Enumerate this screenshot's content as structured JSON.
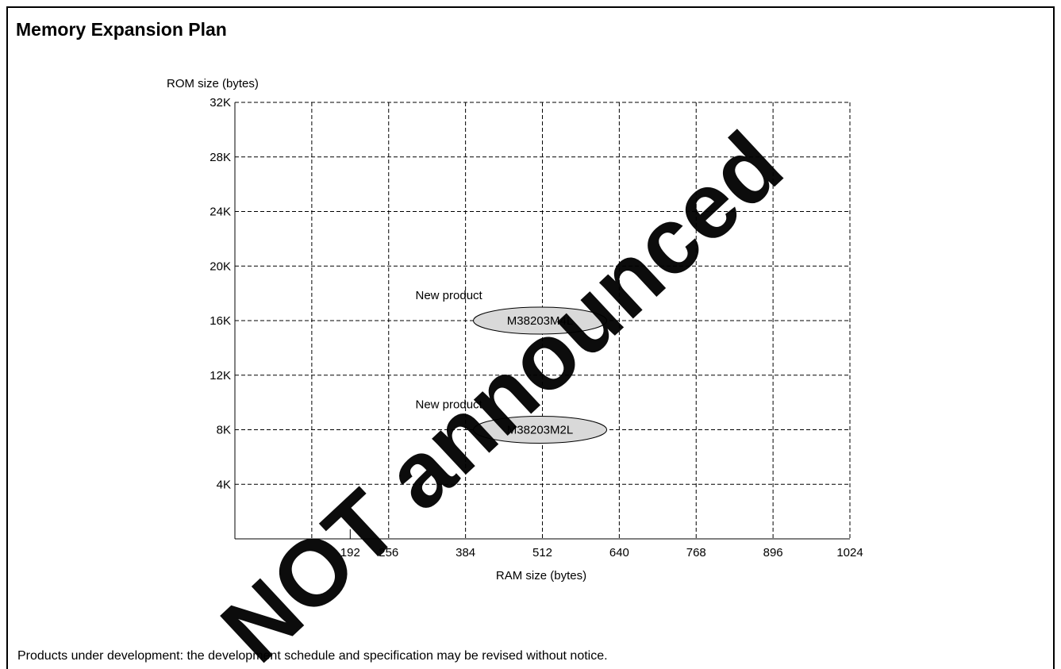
{
  "page": {
    "title": "Memory Expansion Plan",
    "footnote": "Products under development: the development schedule and specification may be revised without notice."
  },
  "watermark": {
    "text": "NOT announced",
    "color": "#e4000f"
  },
  "chart_data": {
    "type": "scatter",
    "ylabel": "ROM size (bytes)",
    "xlabel": "RAM size (bytes)",
    "y_ticks": [
      {
        "value": 4,
        "label": "4K"
      },
      {
        "value": 8,
        "label": "8K"
      },
      {
        "value": 12,
        "label": "12K"
      },
      {
        "value": 16,
        "label": "16K"
      },
      {
        "value": 20,
        "label": "20K"
      },
      {
        "value": 24,
        "label": "24K"
      },
      {
        "value": 28,
        "label": "28K"
      },
      {
        "value": 32,
        "label": "32K"
      }
    ],
    "x_ticks": [
      {
        "value": 192,
        "label": "192"
      },
      {
        "value": 256,
        "label": "256"
      },
      {
        "value": 384,
        "label": "384"
      },
      {
        "value": 512,
        "label": "512"
      },
      {
        "value": 640,
        "label": "640"
      },
      {
        "value": 768,
        "label": "768"
      },
      {
        "value": 896,
        "label": "896"
      },
      {
        "value": 1024,
        "label": "1024"
      }
    ],
    "x_grid": [
      128,
      256,
      384,
      512,
      640,
      768,
      896,
      1024
    ],
    "y_grid": [
      4,
      8,
      12,
      16,
      20,
      24,
      28,
      32
    ],
    "xlim": [
      0,
      1024
    ],
    "ylim": [
      0,
      32
    ],
    "grid": true,
    "products": [
      {
        "name": "M38203M4L",
        "ram": 512,
        "rom": 16,
        "status": "New product",
        "fill": "#d9d9d9"
      },
      {
        "name": "M38203M2L",
        "ram": 512,
        "rom": 8,
        "status": "New product",
        "fill": "#d9d9d9"
      }
    ]
  }
}
